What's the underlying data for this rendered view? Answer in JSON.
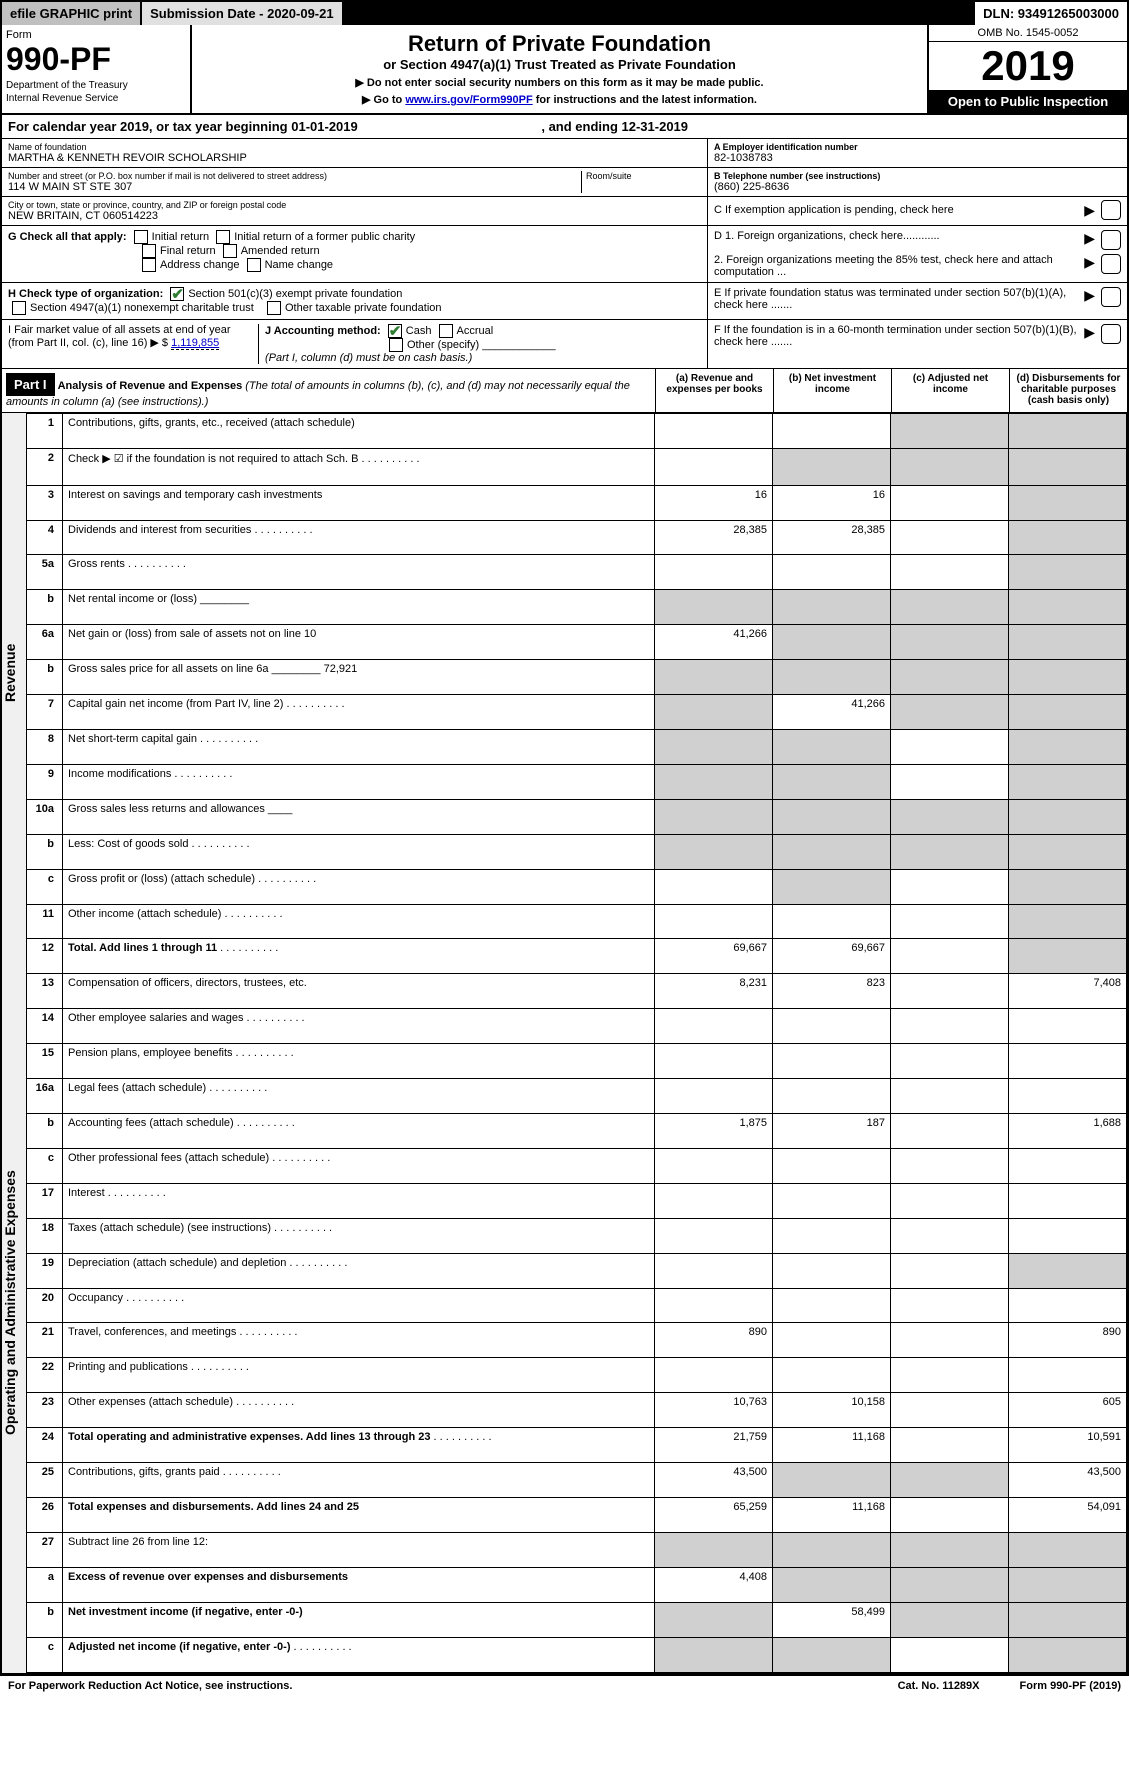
{
  "top": {
    "efile": "efile GRAPHIC print",
    "submission": "Submission Date - 2020-09-21",
    "dln": "DLN: 93491265003000"
  },
  "header": {
    "form_label": "Form",
    "form_num": "990-PF",
    "dept1": "Department of the Treasury",
    "dept2": "Internal Revenue Service",
    "title": "Return of Private Foundation",
    "subtitle": "or Section 4947(a)(1) Trust Treated as Private Foundation",
    "note1": "▶ Do not enter social security numbers on this form as it may be made public.",
    "note2_pre": "▶ Go to ",
    "note2_link": "www.irs.gov/Form990PF",
    "note2_post": " for instructions and the latest information.",
    "omb": "OMB No. 1545-0052",
    "year": "2019",
    "open": "Open to Public Inspection"
  },
  "cal": {
    "text_pre": "For calendar year 2019, or tax year beginning ",
    "begin": "01-01-2019",
    "mid": " , and ending ",
    "end": "12-31-2019"
  },
  "info": {
    "name_label": "Name of foundation",
    "name": "MARTHA & KENNETH REVOIR SCHOLARSHIP",
    "addr_label": "Number and street (or P.O. box number if mail is not delivered to street address)",
    "room_label": "Room/suite",
    "addr": "114 W MAIN ST STE 307",
    "city_label": "City or town, state or province, country, and ZIP or foreign postal code",
    "city": "NEW BRITAIN, CT  060514223",
    "ein_label": "A Employer identification number",
    "ein": "82-1038783",
    "tel_label": "B Telephone number (see instructions)",
    "tel": "(860) 225-8636",
    "c_label": "C If exemption application is pending, check here",
    "g_label": "G Check all that apply:",
    "g_opts": [
      "Initial return",
      "Initial return of a former public charity",
      "Final return",
      "Amended return",
      "Address change",
      "Name change"
    ],
    "d1": "D 1. Foreign organizations, check here............",
    "d2": "2. Foreign organizations meeting the 85% test, check here and attach computation ...",
    "h_label": "H Check type of organization:",
    "h1": "Section 501(c)(3) exempt private foundation",
    "h2": "Section 4947(a)(1) nonexempt charitable trust",
    "h3": "Other taxable private foundation",
    "e_label": "E If private foundation status was terminated under section 507(b)(1)(A), check here .......",
    "i_label_pre": "I Fair market value of all assets at end of year (from Part II, col. (c), line 16) ▶ $ ",
    "i_val": "1,119,855",
    "j_label": "J Accounting method:",
    "j1": "Cash",
    "j2": "Accrual",
    "j3": "Other (specify)",
    "j_note": "(Part I, column (d) must be on cash basis.)",
    "f_label": "F If the foundation is in a 60-month termination under section 507(b)(1)(B), check here .......",
    "part1": "Part I",
    "part1_title": "Analysis of Revenue and Expenses",
    "part1_note": " (The total of amounts in columns (b), (c), and (d) may not necessarily equal the amounts in column (a) (see instructions).)",
    "col_a": "(a) Revenue and expenses per books",
    "col_b": "(b) Net investment income",
    "col_c": "(c) Adjusted net income",
    "col_d": "(d) Disbursements for charitable purposes (cash basis only)"
  },
  "vert": {
    "revenue": "Revenue",
    "expenses": "Operating and Administrative Expenses"
  },
  "rows": [
    {
      "n": "1",
      "d": "Contributions, gifts, grants, etc., received (attach schedule)",
      "a": "",
      "b": "",
      "c": "s",
      "dd": "s"
    },
    {
      "n": "2",
      "d": "Check ▶ ☑ if the foundation is not required to attach Sch. B",
      "a": "",
      "b": "s",
      "c": "s",
      "dd": "s",
      "dots": true
    },
    {
      "n": "3",
      "d": "Interest on savings and temporary cash investments",
      "a": "16",
      "b": "16",
      "c": "",
      "dd": "s"
    },
    {
      "n": "4",
      "d": "Dividends and interest from securities",
      "a": "28,385",
      "b": "28,385",
      "c": "",
      "dd": "s",
      "dots": true
    },
    {
      "n": "5a",
      "d": "Gross rents",
      "a": "",
      "b": "",
      "c": "",
      "dd": "s",
      "dots": true
    },
    {
      "n": "b",
      "d": "Net rental income or (loss) ________",
      "a": "s",
      "b": "s",
      "c": "s",
      "dd": "s"
    },
    {
      "n": "6a",
      "d": "Net gain or (loss) from sale of assets not on line 10",
      "a": "41,266",
      "b": "s",
      "c": "s",
      "dd": "s"
    },
    {
      "n": "b",
      "d": "Gross sales price for all assets on line 6a ________ 72,921",
      "a": "s",
      "b": "s",
      "c": "s",
      "dd": "s"
    },
    {
      "n": "7",
      "d": "Capital gain net income (from Part IV, line 2)",
      "a": "s",
      "b": "41,266",
      "c": "s",
      "dd": "s",
      "dots": true
    },
    {
      "n": "8",
      "d": "Net short-term capital gain",
      "a": "s",
      "b": "s",
      "c": "",
      "dd": "s",
      "dots": true
    },
    {
      "n": "9",
      "d": "Income modifications",
      "a": "s",
      "b": "s",
      "c": "",
      "dd": "s",
      "dots": true
    },
    {
      "n": "10a",
      "d": "Gross sales less returns and allowances  ____",
      "a": "s",
      "b": "s",
      "c": "s",
      "dd": "s"
    },
    {
      "n": "b",
      "d": "Less: Cost of goods sold",
      "a": "s",
      "b": "s",
      "c": "s",
      "dd": "s",
      "dots": true
    },
    {
      "n": "c",
      "d": "Gross profit or (loss) (attach schedule)",
      "a": "",
      "b": "s",
      "c": "",
      "dd": "s",
      "dots": true
    },
    {
      "n": "11",
      "d": "Other income (attach schedule)",
      "a": "",
      "b": "",
      "c": "",
      "dd": "s",
      "dots": true
    },
    {
      "n": "12",
      "d": "Total. Add lines 1 through 11",
      "a": "69,667",
      "b": "69,667",
      "c": "",
      "dd": "s",
      "bold": true,
      "dots": true
    },
    {
      "n": "13",
      "d": "Compensation of officers, directors, trustees, etc.",
      "a": "8,231",
      "b": "823",
      "c": "",
      "dd": "7,408"
    },
    {
      "n": "14",
      "d": "Other employee salaries and wages",
      "a": "",
      "b": "",
      "c": "",
      "dd": "",
      "dots": true
    },
    {
      "n": "15",
      "d": "Pension plans, employee benefits",
      "a": "",
      "b": "",
      "c": "",
      "dd": "",
      "dots": true
    },
    {
      "n": "16a",
      "d": "Legal fees (attach schedule)",
      "a": "",
      "b": "",
      "c": "",
      "dd": "",
      "dots": true
    },
    {
      "n": "b",
      "d": "Accounting fees (attach schedule)",
      "a": "1,875",
      "b": "187",
      "c": "",
      "dd": "1,688",
      "dots": true
    },
    {
      "n": "c",
      "d": "Other professional fees (attach schedule)",
      "a": "",
      "b": "",
      "c": "",
      "dd": "",
      "dots": true
    },
    {
      "n": "17",
      "d": "Interest",
      "a": "",
      "b": "",
      "c": "",
      "dd": "",
      "dots": true
    },
    {
      "n": "18",
      "d": "Taxes (attach schedule) (see instructions)",
      "a": "",
      "b": "",
      "c": "",
      "dd": "",
      "dots": true
    },
    {
      "n": "19",
      "d": "Depreciation (attach schedule) and depletion",
      "a": "",
      "b": "",
      "c": "",
      "dd": "s",
      "dots": true
    },
    {
      "n": "20",
      "d": "Occupancy",
      "a": "",
      "b": "",
      "c": "",
      "dd": "",
      "dots": true
    },
    {
      "n": "21",
      "d": "Travel, conferences, and meetings",
      "a": "890",
      "b": "",
      "c": "",
      "dd": "890",
      "dots": true
    },
    {
      "n": "22",
      "d": "Printing and publications",
      "a": "",
      "b": "",
      "c": "",
      "dd": "",
      "dots": true
    },
    {
      "n": "23",
      "d": "Other expenses (attach schedule)",
      "a": "10,763",
      "b": "10,158",
      "c": "",
      "dd": "605",
      "dots": true
    },
    {
      "n": "24",
      "d": "Total operating and administrative expenses. Add lines 13 through 23",
      "a": "21,759",
      "b": "11,168",
      "c": "",
      "dd": "10,591",
      "bold": true,
      "dots": true
    },
    {
      "n": "25",
      "d": "Contributions, gifts, grants paid",
      "a": "43,500",
      "b": "s",
      "c": "s",
      "dd": "43,500",
      "dots": true
    },
    {
      "n": "26",
      "d": "Total expenses and disbursements. Add lines 24 and 25",
      "a": "65,259",
      "b": "11,168",
      "c": "",
      "dd": "54,091",
      "bold": true
    },
    {
      "n": "27",
      "d": "Subtract line 26 from line 12:",
      "a": "s",
      "b": "s",
      "c": "s",
      "dd": "s"
    },
    {
      "n": "a",
      "d": "Excess of revenue over expenses and disbursements",
      "a": "4,408",
      "b": "s",
      "c": "s",
      "dd": "s",
      "bold": true
    },
    {
      "n": "b",
      "d": "Net investment income (if negative, enter -0-)",
      "a": "s",
      "b": "58,499",
      "c": "s",
      "dd": "s",
      "bold": true
    },
    {
      "n": "c",
      "d": "Adjusted net income (if negative, enter -0-)",
      "a": "s",
      "b": "s",
      "c": "",
      "dd": "s",
      "bold": true,
      "dots": true
    }
  ],
  "footer": {
    "left": "For Paperwork Reduction Act Notice, see instructions.",
    "mid": "Cat. No. 11289X",
    "right": "Form 990-PF (2019)"
  }
}
